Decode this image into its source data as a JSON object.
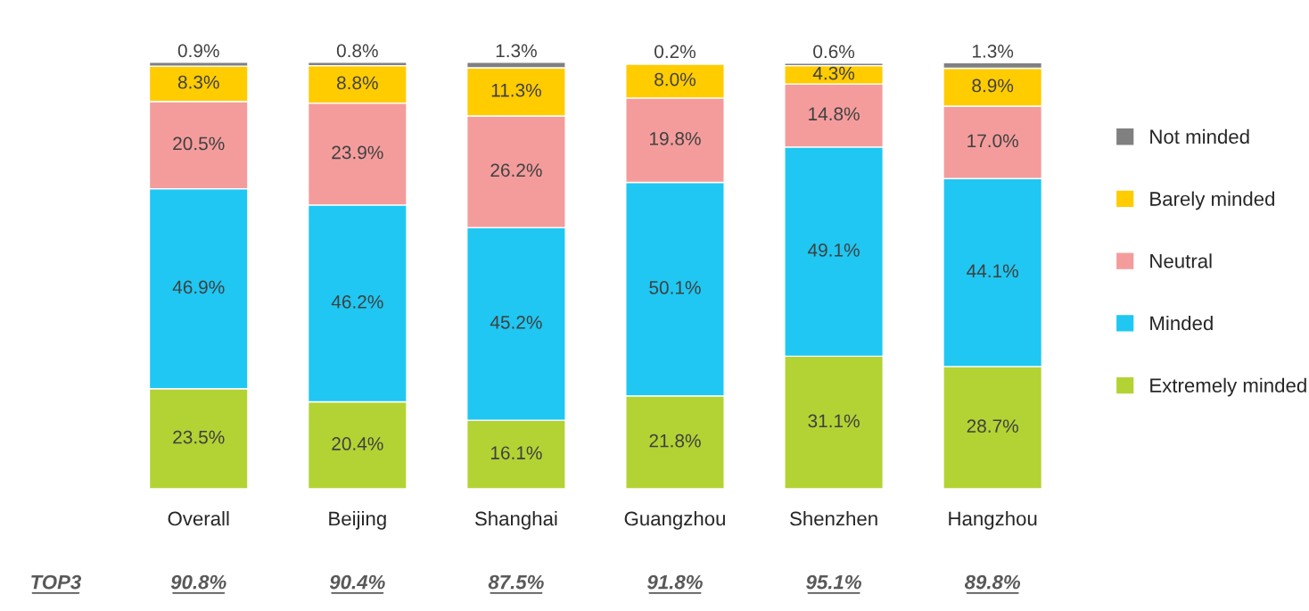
{
  "chart_data": {
    "type": "bar",
    "stacked": true,
    "legend": "right",
    "categories": [
      "Overall",
      "Beijing",
      "Shanghai",
      "Guangzhou",
      "Shenzhen",
      "Hangzhou"
    ],
    "series": [
      {
        "name": "Extremely minded",
        "color": "#b3d334",
        "values": [
          23.5,
          20.4,
          16.1,
          21.8,
          31.1,
          28.7
        ],
        "value_labels": [
          "23.5%",
          "20.4%",
          "16.1%",
          "21.8%",
          "31.1%",
          "28.7%"
        ]
      },
      {
        "name": "Minded",
        "color": "#1fc7f2",
        "values": [
          46.9,
          46.2,
          45.2,
          50.1,
          49.1,
          44.1
        ],
        "value_labels": [
          "46.9%",
          "46.2%",
          "45.2%",
          "50.1%",
          "49.1%",
          "44.1%"
        ]
      },
      {
        "name": "Neutral",
        "color": "#f49c9c",
        "values": [
          20.5,
          23.9,
          26.2,
          19.8,
          14.8,
          17.0
        ],
        "value_labels": [
          "20.5%",
          "23.9%",
          "26.2%",
          "19.8%",
          "14.8%",
          "17.0%"
        ]
      },
      {
        "name": "Barely minded",
        "color": "#ffcc00",
        "values": [
          8.3,
          8.8,
          11.3,
          8.0,
          4.3,
          8.9
        ],
        "value_labels": [
          "8.3%",
          "8.8%",
          "11.3%",
          "8.0%",
          "4.3%",
          "8.9%"
        ]
      },
      {
        "name": "Not minded",
        "color": "#808080",
        "values": [
          0.9,
          0.8,
          1.3,
          0.2,
          0.6,
          1.3
        ],
        "value_labels": [
          "0.9%",
          "0.8%",
          "1.3%",
          "0.2%",
          "0.6%",
          "1.3%"
        ]
      }
    ],
    "annotations": [
      "TOP3",
      "90.8%",
      "90.4%",
      "87.5%",
      "91.8%",
      "95.1%",
      "89.8%"
    ]
  }
}
